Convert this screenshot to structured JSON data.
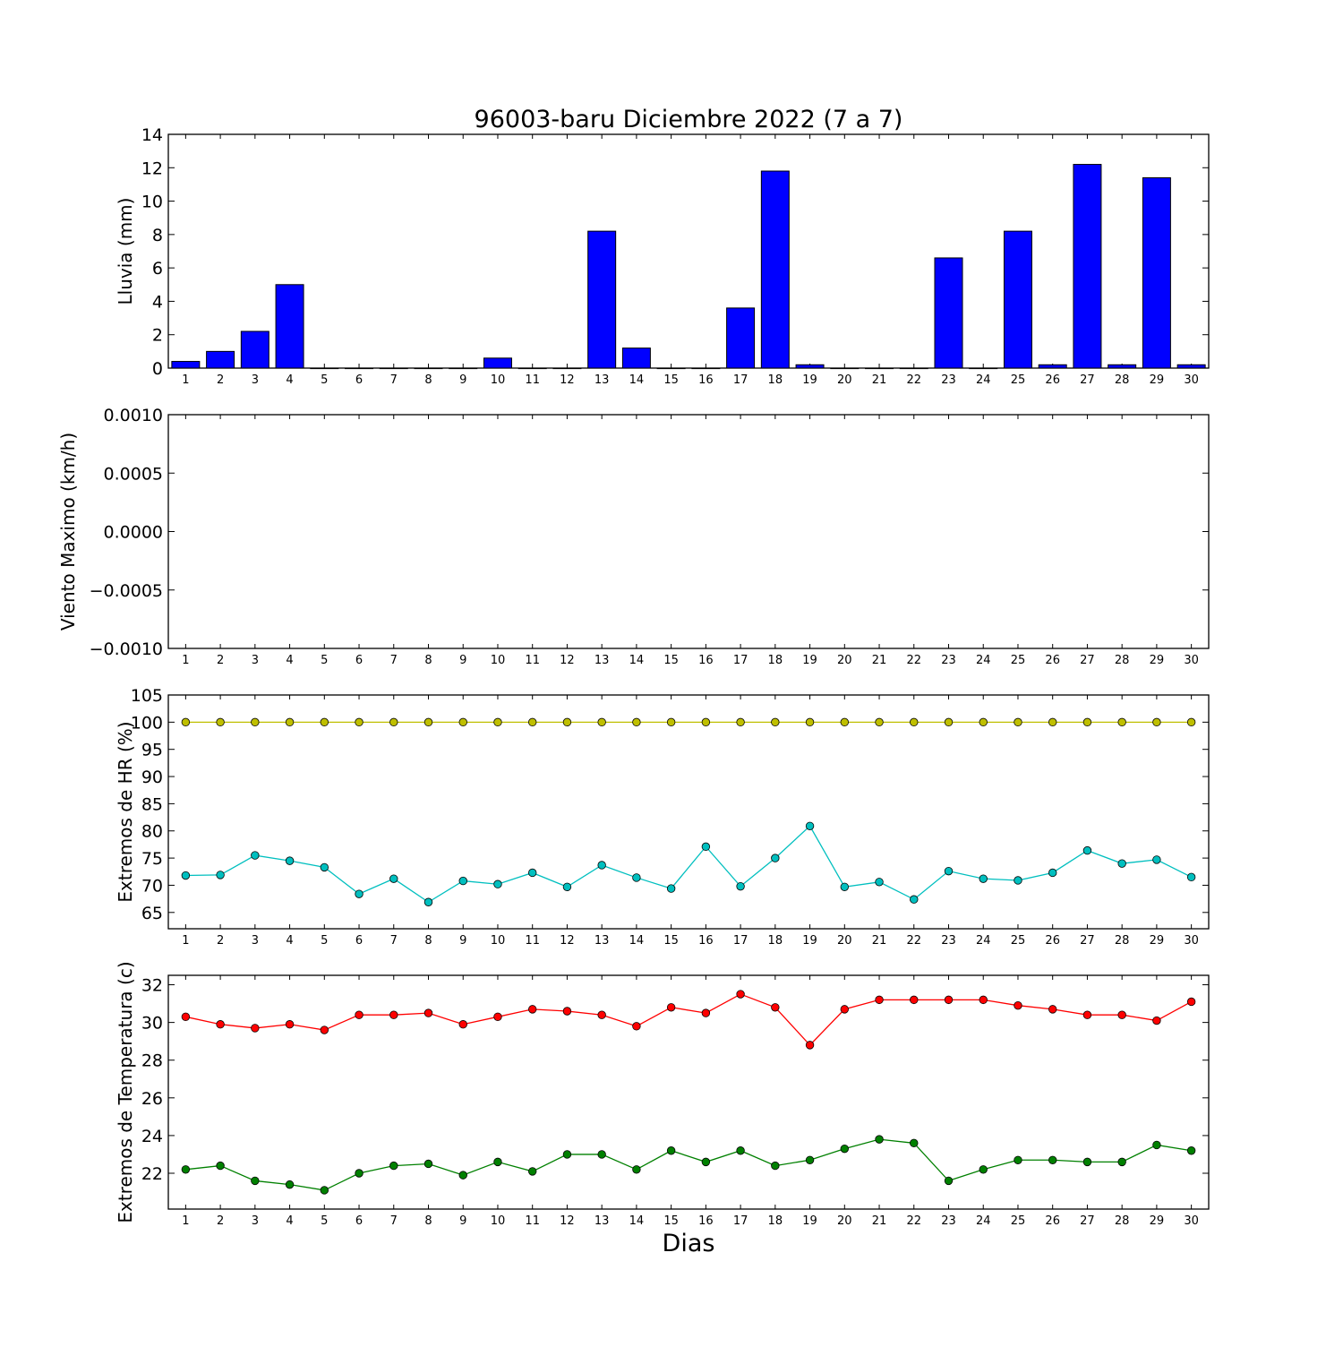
{
  "page": {
    "title": "96003-baru Diciembre 2022  (7 a 7)",
    "xlabel": "Dias"
  },
  "chart_data": [
    {
      "type": "bar",
      "ylabel": "Lluvia (mm)",
      "ylim": [
        0,
        14
      ],
      "yticks": [
        "0",
        "2",
        "4",
        "6",
        "8",
        "10",
        "12",
        "14"
      ],
      "categories": [
        "1",
        "2",
        "3",
        "4",
        "5",
        "6",
        "7",
        "8",
        "9",
        "10",
        "11",
        "12",
        "13",
        "14",
        "15",
        "16",
        "17",
        "18",
        "19",
        "20",
        "21",
        "22",
        "23",
        "24",
        "25",
        "26",
        "27",
        "28",
        "29",
        "30"
      ],
      "series": [
        {
          "color": "#0000ff",
          "values": [
            0.4,
            1.0,
            2.2,
            5.0,
            0,
            0,
            0,
            0,
            0,
            0.6,
            0,
            0,
            8.2,
            1.2,
            0,
            0,
            3.6,
            11.8,
            0.2,
            0,
            0,
            0,
            6.6,
            0,
            8.2,
            0.2,
            12.2,
            0.2,
            11.4,
            0.2
          ]
        }
      ],
      "grid": false
    },
    {
      "type": "line",
      "ylabel": "Viento Maximo (km/h)",
      "ylim": [
        -0.001,
        0.001
      ],
      "yticks": [
        "0.0010",
        "0.0005",
        "0.0000",
        "−0.0005",
        "−0.0010"
      ],
      "categories": [
        "1",
        "2",
        "3",
        "4",
        "5",
        "6",
        "7",
        "8",
        "9",
        "10",
        "11",
        "12",
        "13",
        "14",
        "15",
        "16",
        "17",
        "18",
        "19",
        "20",
        "21",
        "22",
        "23",
        "24",
        "25",
        "26",
        "27",
        "28",
        "29",
        "30"
      ],
      "series": [],
      "grid": false
    },
    {
      "type": "line",
      "ylabel": "Extremos de HR (%)",
      "ylim": [
        62,
        105
      ],
      "yticks": [
        "65",
        "70",
        "75",
        "80",
        "85",
        "90",
        "95",
        "100",
        "105"
      ],
      "categories": [
        "1",
        "2",
        "3",
        "4",
        "5",
        "6",
        "7",
        "8",
        "9",
        "10",
        "11",
        "12",
        "13",
        "14",
        "15",
        "16",
        "17",
        "18",
        "19",
        "20",
        "21",
        "22",
        "23",
        "24",
        "25",
        "26",
        "27",
        "28",
        "29",
        "30"
      ],
      "series": [
        {
          "color": "#bfbf00",
          "values": [
            100,
            100,
            100,
            100,
            100,
            100,
            100,
            100,
            100,
            100,
            100,
            100,
            100,
            100,
            100,
            100,
            100,
            100,
            100,
            100,
            100,
            100,
            100,
            100,
            100,
            100,
            100,
            100,
            100,
            100
          ]
        },
        {
          "color": "#00bfbf",
          "values": [
            71.8,
            71.9,
            75.5,
            74.5,
            73.3,
            68.4,
            71.2,
            66.9,
            70.8,
            70.2,
            72.3,
            69.7,
            73.7,
            71.4,
            69.4,
            77.1,
            69.8,
            75.0,
            80.9,
            69.7,
            70.6,
            67.4,
            72.6,
            71.2,
            70.9,
            72.3,
            76.4,
            74.0,
            74.7,
            71.5
          ]
        }
      ],
      "grid": false
    },
    {
      "type": "line",
      "ylabel": "Extremos de Temperatura (c)",
      "ylim": [
        20.1,
        32.5
      ],
      "yticks": [
        "22",
        "24",
        "26",
        "28",
        "30",
        "32"
      ],
      "categories": [
        "1",
        "2",
        "3",
        "4",
        "5",
        "6",
        "7",
        "8",
        "9",
        "10",
        "11",
        "12",
        "13",
        "14",
        "15",
        "16",
        "17",
        "18",
        "19",
        "20",
        "21",
        "22",
        "23",
        "24",
        "25",
        "26",
        "27",
        "28",
        "29",
        "30"
      ],
      "series": [
        {
          "color": "#ff0000",
          "values": [
            30.3,
            29.9,
            29.7,
            29.9,
            29.6,
            30.4,
            30.4,
            30.5,
            29.9,
            30.3,
            30.7,
            30.6,
            30.4,
            29.8,
            30.8,
            30.5,
            31.5,
            30.8,
            28.8,
            30.7,
            31.2,
            31.2,
            31.2,
            31.2,
            30.9,
            30.7,
            30.4,
            30.4,
            30.1,
            31.1
          ]
        },
        {
          "color": "#008000",
          "values": [
            22.2,
            22.4,
            21.6,
            21.4,
            21.1,
            22.0,
            22.4,
            22.5,
            21.9,
            22.6,
            22.1,
            23.0,
            23.0,
            22.2,
            23.2,
            22.6,
            23.2,
            22.4,
            22.7,
            23.3,
            23.8,
            23.6,
            21.6,
            22.2,
            22.7,
            22.7,
            22.6,
            22.6,
            23.5,
            23.2
          ]
        }
      ],
      "grid": false
    }
  ]
}
